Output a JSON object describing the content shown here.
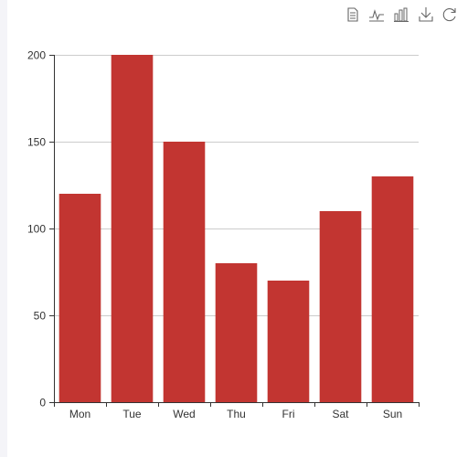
{
  "toolbox": {
    "icons": [
      "data-view-icon",
      "line-chart-icon",
      "bar-chart-icon",
      "download-icon",
      "restore-icon"
    ],
    "icon_color": "#666666"
  },
  "chart_data": {
    "type": "bar",
    "categories": [
      "Mon",
      "Tue",
      "Wed",
      "Thu",
      "Fri",
      "Sat",
      "Sun"
    ],
    "values": [
      120,
      200,
      150,
      80,
      70,
      110,
      130
    ],
    "title": "",
    "xlabel": "",
    "ylabel": "",
    "ylim": [
      0,
      200
    ],
    "yticks": [
      0,
      50,
      100,
      150,
      200
    ],
    "ytick_labels": [
      "0",
      "50",
      "100",
      "150",
      "200"
    ],
    "grid": true,
    "bar_color": "#c23531",
    "grid_color": "#cccccc",
    "axis_color": "#333333"
  }
}
